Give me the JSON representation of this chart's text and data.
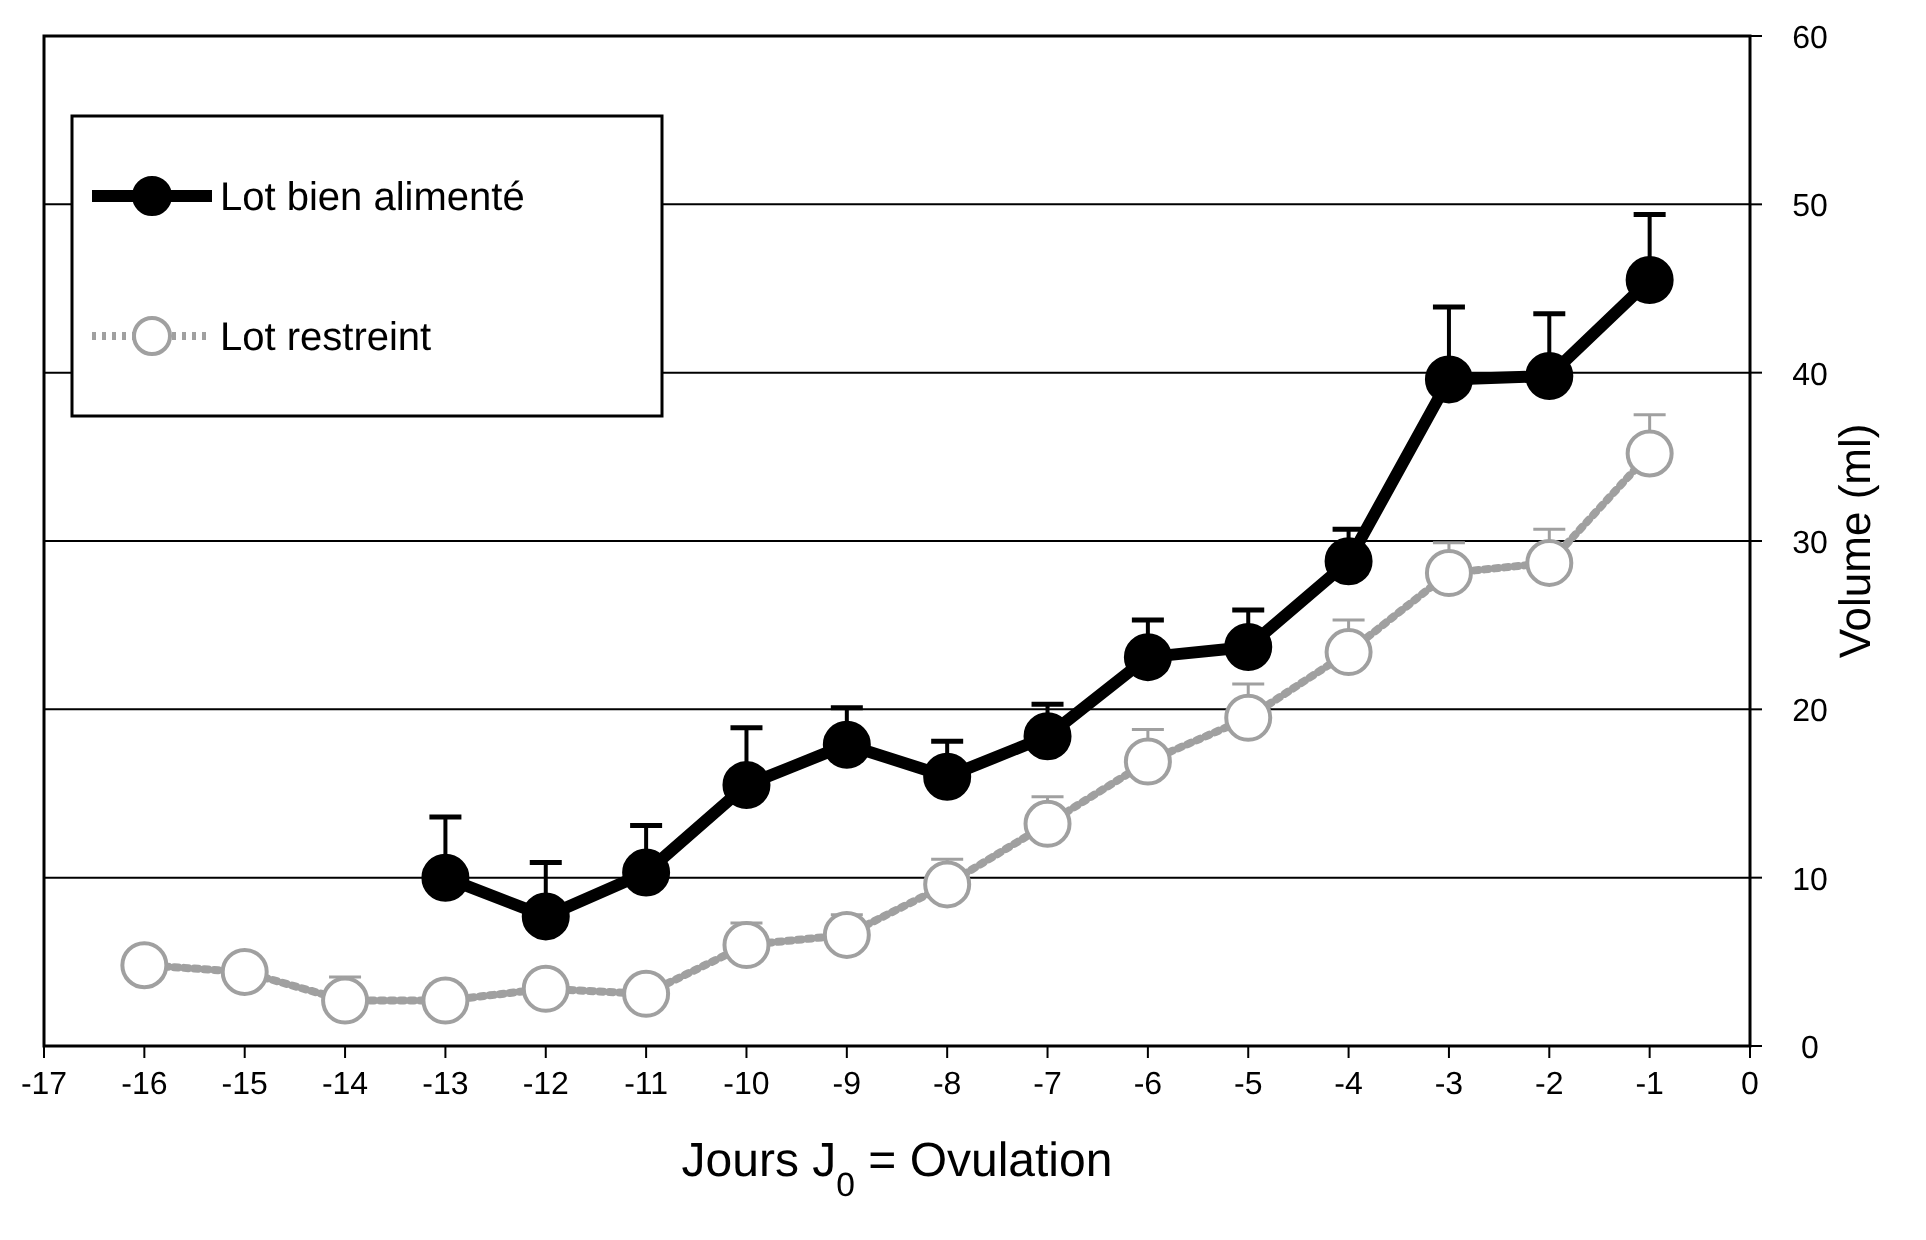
{
  "chart_data": {
    "type": "line",
    "xlabel": "Jours J$_{0}$ = Ovulation",
    "ylabel": "Volume (ml)",
    "x": [
      -16,
      -15,
      -14,
      -13,
      -12,
      -11,
      -10,
      -9,
      -8,
      -7,
      -6,
      -5,
      -4,
      -3,
      -2,
      -1
    ],
    "xlim": [
      -17,
      0
    ],
    "xticks": [
      -17,
      -16,
      -15,
      -14,
      -13,
      -12,
      -11,
      -10,
      -9,
      -8,
      -7,
      -6,
      -5,
      -4,
      -3,
      -2,
      -1,
      0
    ],
    "ylim": [
      0,
      60
    ],
    "yticks": [
      0,
      10,
      20,
      30,
      40,
      50,
      60
    ],
    "grid": "y",
    "legend": "top left",
    "marker": "circle",
    "series": [
      {
        "name": "Lot bien alimenté",
        "color": "#000000",
        "line_style": "solid",
        "values": [
          null,
          null,
          null,
          10.0,
          7.7,
          10.3,
          15.5,
          17.9,
          16.0,
          18.4,
          23.1,
          23.7,
          28.8,
          39.6,
          39.8,
          45.5
        ],
        "errors": [
          null,
          null,
          null,
          [
            10.0,
            13.6
          ],
          [
            7.7,
            10.9
          ],
          [
            10.3,
            13.1
          ],
          [
            15.5,
            18.9
          ],
          [
            17.9,
            20.1
          ],
          [
            16.0,
            18.1
          ],
          [
            18.4,
            20.3
          ],
          [
            23.1,
            25.3
          ],
          [
            23.7,
            25.9
          ],
          [
            28.8,
            30.7
          ],
          [
            39.6,
            43.9
          ],
          [
            39.8,
            43.5
          ],
          [
            45.5,
            49.4
          ]
        ]
      },
      {
        "name": "Lot restreint",
        "color": "#a0a0a0",
        "line_style": "dotted",
        "values": [
          4.8,
          4.4,
          2.7,
          2.7,
          3.4,
          3.1,
          6.0,
          6.6,
          9.6,
          13.2,
          16.9,
          19.5,
          23.4,
          28.1,
          28.7,
          35.2
        ],
        "errors": [
          null,
          null,
          [
            2.7,
            4.1
          ],
          [
            2.7,
            3.7
          ],
          null,
          null,
          [
            6.0,
            7.3
          ],
          [
            6.6,
            7.8
          ],
          [
            9.6,
            11.1
          ],
          [
            13.2,
            14.8
          ],
          [
            16.9,
            18.8
          ],
          [
            19.5,
            21.5
          ],
          [
            23.4,
            25.3
          ],
          [
            28.1,
            29.9
          ],
          [
            28.7,
            30.7
          ],
          [
            35.2,
            37.5
          ]
        ]
      }
    ]
  }
}
